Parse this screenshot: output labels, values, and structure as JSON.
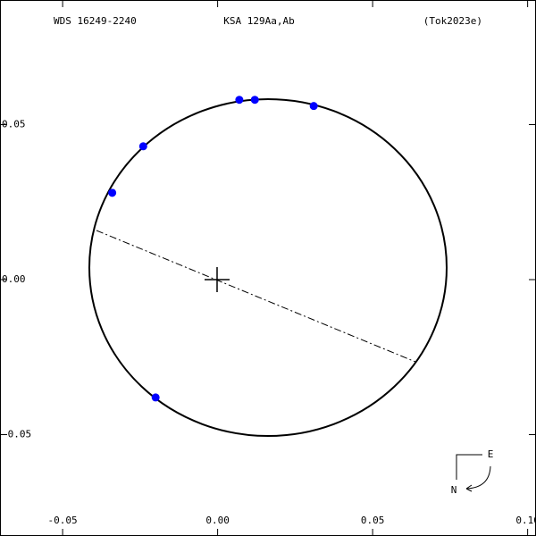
{
  "chart_data": {
    "type": "scatter",
    "title": "KSA 129Aa,Ab",
    "annotations": [
      "WDS 16249-2240",
      "(Tok2023e)",
      "E",
      "N"
    ],
    "x": [
      0.007,
      0.012,
      0.031,
      -0.024,
      -0.034,
      -0.02
    ],
    "series": [
      {
        "color": "#0000ff",
        "values": [
          0.058,
          0.058,
          0.056,
          0.043,
          0.028,
          -0.038
        ]
      }
    ],
    "xlim": [
      -0.0702,
      0.1027
    ],
    "ylim": [
      -0.0827,
      0.0902
    ],
    "xticks": [
      {
        "value": -0.05,
        "label": "-0.05"
      },
      {
        "value": 0,
        "label": "0.00"
      },
      {
        "value": 0.05,
        "label": "0.05"
      },
      {
        "value": 0.1,
        "label": "0.10"
      }
    ],
    "yticks": [
      {
        "value": 0.05,
        "label": "0.05"
      },
      {
        "value": 0,
        "label": "0.00"
      },
      {
        "value": -0.05,
        "label": "-0.05"
      }
    ]
  }
}
